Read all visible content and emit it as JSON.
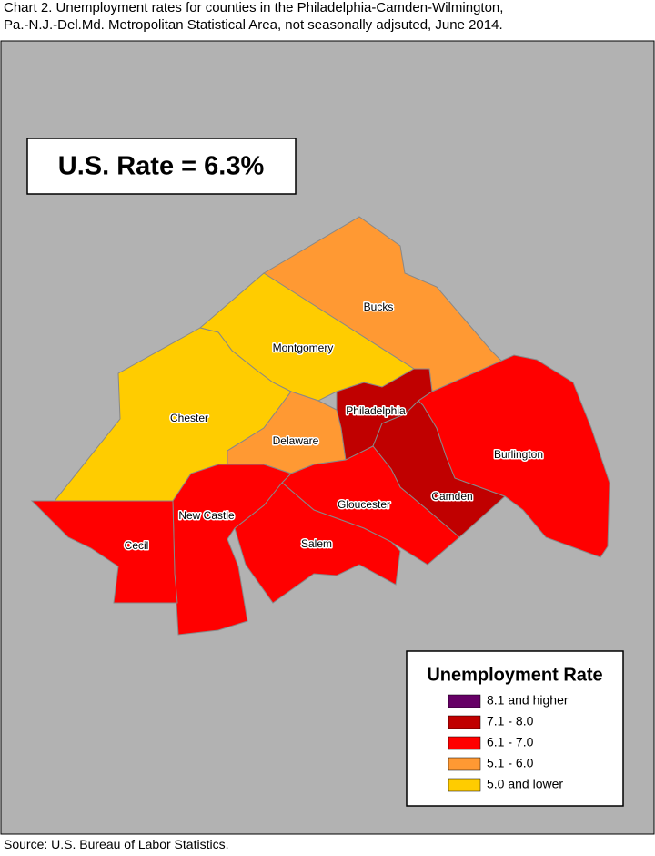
{
  "header": {
    "title_line1": "Chart 2.  Unemployment rates for counties in the Philadelphia-Camden-Wilmington,",
    "title_line2": "Pa.-N.J.-Del.Md. Metropolitan Statistical Area, not seasonally adjsuted, June 2014."
  },
  "us_rate": "U.S. Rate = 6.3%",
  "legend": {
    "title": "Unemployment Rate",
    "items": [
      {
        "label": "8.1 and higher",
        "color": "#660066"
      },
      {
        "label": "7.1 - 8.0",
        "color": "#C00000"
      },
      {
        "label": "6.1 - 7.0",
        "color": "#FF0000"
      },
      {
        "label": "5.1 - 6.0",
        "color": "#FF9933"
      },
      {
        "label": "5.0 and lower",
        "color": "#FFCC00"
      }
    ]
  },
  "counties": [
    {
      "name": "Bucks",
      "class": 3
    },
    {
      "name": "Montgomery",
      "class": 4
    },
    {
      "name": "Chester",
      "class": 4
    },
    {
      "name": "Delaware",
      "class": 3
    },
    {
      "name": "Philadelphia",
      "class": 1
    },
    {
      "name": "Camden",
      "class": 1
    },
    {
      "name": "Burlington",
      "class": 2
    },
    {
      "name": "Gloucester",
      "class": 2
    },
    {
      "name": "Salem",
      "class": 2
    },
    {
      "name": "New Castle",
      "class": 2
    },
    {
      "name": "Cecil",
      "class": 2
    }
  ],
  "source": "Source: U.S. Bureau of Labor Statistics."
}
